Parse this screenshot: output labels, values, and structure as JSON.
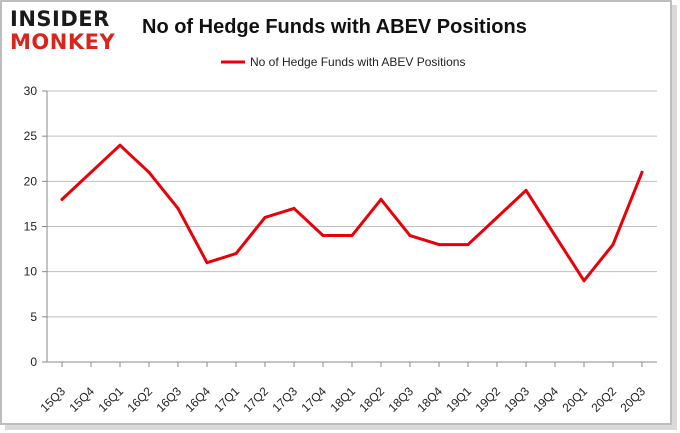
{
  "logo": {
    "line1": "INSIDER",
    "line2": "MONKEY"
  },
  "chart_data": {
    "type": "line",
    "title": "No of Hedge Funds with ABEV Positions",
    "xlabel": "",
    "ylabel": "",
    "categories": [
      "15Q3",
      "15Q4",
      "16Q1",
      "16Q2",
      "16Q3",
      "16Q4",
      "17Q1",
      "17Q2",
      "17Q3",
      "17Q4",
      "18Q1",
      "18Q2",
      "18Q3",
      "18Q4",
      "19Q1",
      "19Q2",
      "19Q3",
      "19Q4",
      "20Q1",
      "20Q2",
      "20Q3"
    ],
    "series": [
      {
        "name": "No of Hedge Funds with ABEV Positions",
        "color": "#e8000b",
        "values": [
          18,
          21,
          24,
          21,
          17,
          11,
          12,
          16,
          17,
          14,
          14,
          18,
          14,
          13,
          13,
          16,
          19,
          14,
          9,
          13,
          21
        ]
      }
    ],
    "ylim": [
      0,
      30
    ],
    "yticks": [
      0,
      5,
      10,
      15,
      20,
      25,
      30
    ],
    "grid": true,
    "legend": "top-center"
  }
}
